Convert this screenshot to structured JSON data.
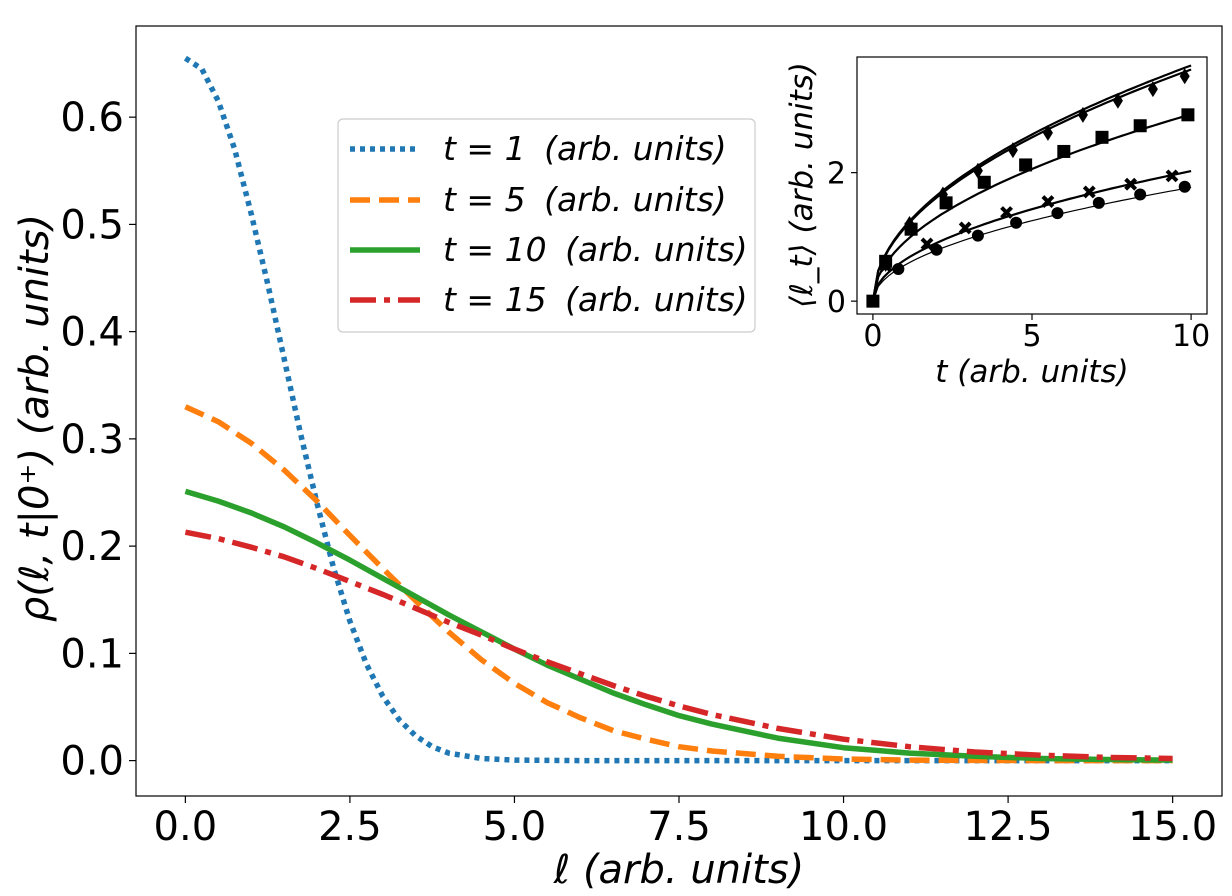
{
  "chart_data": [
    {
      "type": "line",
      "title": "",
      "xlabel": "ℓ (arb. units)",
      "ylabel": "ρ(ℓ, t|0⁺) (arb. units)",
      "xlim": [
        -0.75,
        15.75
      ],
      "ylim": [
        -0.033,
        0.685
      ],
      "xticks": [
        0.0,
        2.5,
        5.0,
        7.5,
        10.0,
        12.5,
        15.0
      ],
      "xtick_labels": [
        "0.0",
        "2.5",
        "5.0",
        "7.5",
        "10.0",
        "12.5",
        "15.0"
      ],
      "yticks": [
        0.0,
        0.1,
        0.2,
        0.3,
        0.4,
        0.5,
        0.6
      ],
      "ytick_labels": [
        "0.0",
        "0.1",
        "0.2",
        "0.3",
        "0.4",
        "0.5",
        "0.6"
      ],
      "grid": false,
      "legend_position": "upper-center",
      "series": [
        {
          "name": "t = 1 (arb. units)",
          "t_text": "t = 1",
          "units_text": "(arb. units)",
          "t": 1,
          "color": "#1f77b4",
          "style": "dotted",
          "x": [
            0,
            0.25,
            0.5,
            0.75,
            1,
            1.25,
            1.5,
            1.75,
            2,
            2.25,
            2.5,
            2.75,
            3,
            3.25,
            3.5,
            3.75,
            4,
            4.5,
            5,
            6,
            8,
            10,
            12,
            15
          ],
          "y": [
            0.655,
            0.645,
            0.615,
            0.57,
            0.51,
            0.445,
            0.375,
            0.305,
            0.24,
            0.18,
            0.13,
            0.09,
            0.06,
            0.038,
            0.023,
            0.013,
            0.007,
            0.002,
            0.0005,
            0.0,
            0.0,
            0.0,
            0.0,
            0.0
          ]
        },
        {
          "name": "t = 5 (arb. units)",
          "t_text": "t = 5",
          "units_text": "(arb. units)",
          "t": 5,
          "color": "#ff7f0e",
          "style": "dashed",
          "x": [
            0,
            0.5,
            1,
            1.5,
            2,
            2.5,
            3,
            3.5,
            4,
            4.5,
            5,
            5.5,
            6,
            6.5,
            7,
            7.5,
            8,
            9,
            10,
            11,
            12,
            13,
            14,
            15
          ],
          "y": [
            0.33,
            0.316,
            0.296,
            0.271,
            0.242,
            0.21,
            0.179,
            0.149,
            0.12,
            0.094,
            0.072,
            0.054,
            0.04,
            0.028,
            0.02,
            0.013,
            0.009,
            0.004,
            0.0015,
            0.0005,
            0.0002,
            0.0,
            0.0,
            0.0
          ]
        },
        {
          "name": "t = 10 (arb. units)",
          "t_text": "t = 10",
          "units_text": "(arb. units)",
          "t": 10,
          "color": "#2ca02c",
          "style": "solid",
          "x": [
            0,
            0.5,
            1,
            1.5,
            2,
            2.5,
            3,
            3.5,
            4,
            4.5,
            5,
            5.5,
            6,
            6.5,
            7,
            7.5,
            8,
            9,
            10,
            11,
            12,
            13,
            14,
            15
          ],
          "y": [
            0.251,
            0.242,
            0.231,
            0.218,
            0.203,
            0.187,
            0.17,
            0.153,
            0.136,
            0.12,
            0.104,
            0.089,
            0.076,
            0.063,
            0.052,
            0.042,
            0.034,
            0.021,
            0.012,
            0.007,
            0.004,
            0.002,
            0.001,
            0.0005
          ]
        },
        {
          "name": "t = 15 (arb. units)",
          "t_text": "t = 15",
          "units_text": "(arb. units)",
          "t": 15,
          "color": "#d62728",
          "style": "dashdot",
          "x": [
            0,
            0.5,
            1,
            1.5,
            2,
            2.5,
            3,
            3.5,
            4,
            4.5,
            5,
            5.5,
            6,
            6.5,
            7,
            7.5,
            8,
            9,
            10,
            11,
            12,
            13,
            14,
            15
          ],
          "y": [
            0.213,
            0.207,
            0.199,
            0.19,
            0.179,
            0.167,
            0.155,
            0.142,
            0.129,
            0.117,
            0.104,
            0.092,
            0.081,
            0.07,
            0.06,
            0.051,
            0.043,
            0.03,
            0.02,
            0.013,
            0.008,
            0.005,
            0.003,
            0.002
          ]
        }
      ]
    },
    {
      "type": "line",
      "title": "",
      "xlabel": "t (arb. units)",
      "ylabel": "⟨ℓ_t⟩ (arb. units)",
      "xlim": [
        -0.5,
        10.5
      ],
      "ylim": [
        -0.2,
        3.8
      ],
      "xticks": [
        0,
        5,
        10
      ],
      "xtick_labels": [
        "0",
        "5",
        "10"
      ],
      "yticks": [
        0,
        2
      ],
      "ytick_labels": [
        "0",
        "2"
      ],
      "grid": false,
      "series": [
        {
          "name": "diamond",
          "marker": "diamond",
          "coef": 1.16,
          "curve_width": 2.2,
          "points_x": [
            0.4,
            1.15,
            2.2,
            3.3,
            4.4,
            5.5,
            6.6,
            7.7,
            8.8,
            9.8
          ],
          "points_y": [
            0.58,
            1.2,
            1.66,
            2.03,
            2.35,
            2.62,
            2.9,
            3.12,
            3.3,
            3.5
          ]
        },
        {
          "name": "curve-extra",
          "marker": "none",
          "coef": 1.14,
          "curve_width": 2.2,
          "points_x": [],
          "points_y": []
        },
        {
          "name": "square",
          "marker": "square",
          "coef": 0.92,
          "curve_width": 2.2,
          "points_x": [
            0,
            0.4,
            1.2,
            2.3,
            3.5,
            4.8,
            6.0,
            7.2,
            8.4,
            9.9
          ],
          "points_y": [
            0.0,
            0.62,
            1.12,
            1.53,
            1.85,
            2.12,
            2.33,
            2.55,
            2.73,
            2.9
          ]
        },
        {
          "name": "cross",
          "marker": "cross",
          "coef": 0.64,
          "curve_width": 2.2,
          "points_x": [
            0.4,
            1.7,
            2.9,
            4.2,
            5.5,
            6.8,
            8.1,
            9.4
          ],
          "points_y": [
            0.55,
            0.89,
            1.14,
            1.38,
            1.55,
            1.7,
            1.82,
            1.95
          ]
        },
        {
          "name": "circle",
          "marker": "circle",
          "coef": 0.56,
          "curve_width": 1.2,
          "points_x": [
            0.8,
            2.0,
            3.3,
            4.5,
            5.8,
            7.1,
            8.4,
            9.8
          ],
          "points_y": [
            0.5,
            0.8,
            1.02,
            1.22,
            1.37,
            1.53,
            1.66,
            1.78
          ]
        }
      ]
    }
  ]
}
